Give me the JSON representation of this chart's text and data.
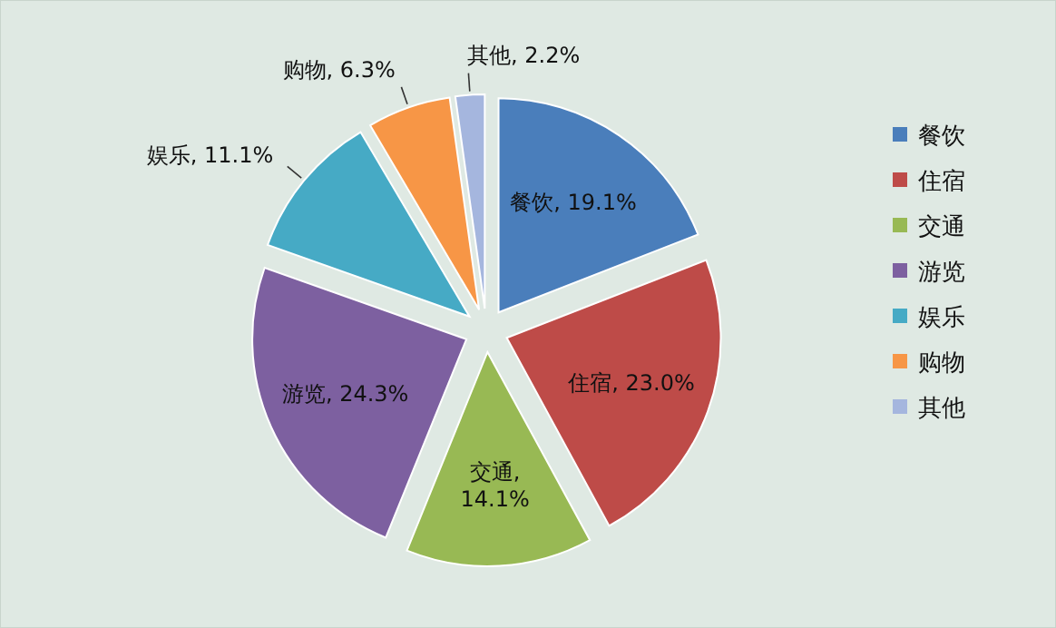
{
  "chart_data": {
    "type": "pie",
    "categories": [
      "餐饮",
      "住宿",
      "交通",
      "游览",
      "娱乐",
      "购物",
      "其他"
    ],
    "values": [
      19.1,
      23.0,
      14.1,
      24.3,
      11.1,
      6.3,
      2.2
    ],
    "colors": [
      "#4a7ebb",
      "#be4b48",
      "#98b954",
      "#7d60a0",
      "#46aac5",
      "#f79646",
      "#a5b6de"
    ],
    "value_labels": [
      "餐饮, 19.1%",
      "住宿, 23.0%",
      "交通, 14.1%",
      "游览, 24.3%",
      "娱乐, 11.1%",
      "购物, 6.3%",
      "其他, 2.2%"
    ],
    "legend": "right"
  }
}
